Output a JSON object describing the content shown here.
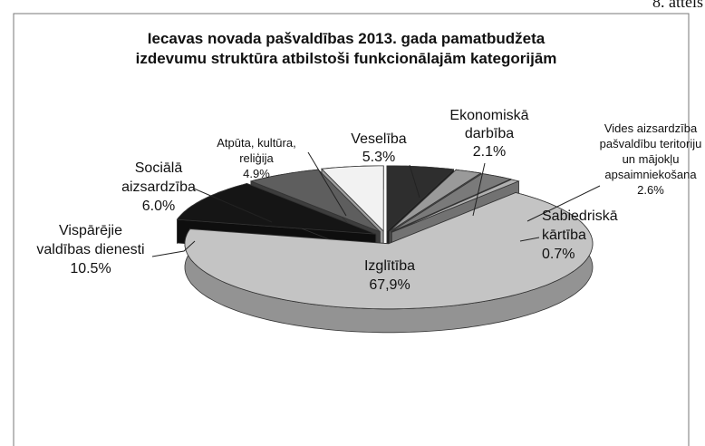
{
  "chart_data": {
    "type": "pie",
    "figure_label": "8. attēls",
    "title": [
      "Iecavas novada pašvaldības 2013. gada pamatbudžeta",
      "izdevumu struktūra atbilstoši funkcionālajām kategorijām"
    ],
    "categories": [
      "Veselība",
      "Ekonomiskā\ndarbība",
      "Vides aizsardzība\npašvaldību teritoriju\nun mājokļu\napsaimniekošana",
      "Sabiedriskā\nkārtība",
      "Izglītība",
      "Vispārējie\nvaldības dienesti",
      "Sociālā\naizsardzība",
      "Atpūta, kultūra,\nreliģija"
    ],
    "values": [
      5.3,
      2.1,
      2.6,
      0.7,
      67.9,
      10.5,
      6.0,
      4.9
    ],
    "value_labels": [
      "5.3%",
      "2.1%",
      "2.6%",
      "0.7%",
      "67,9%",
      "10.5%",
      "6.0%",
      "4.9%"
    ],
    "colors": [
      "#2e2e2e",
      "#9a9a9a",
      "#7a7a7a",
      "#b0b0b0",
      "#c4c4c4",
      "#151515",
      "#5e5e5e",
      "#f2f2f2"
    ]
  }
}
